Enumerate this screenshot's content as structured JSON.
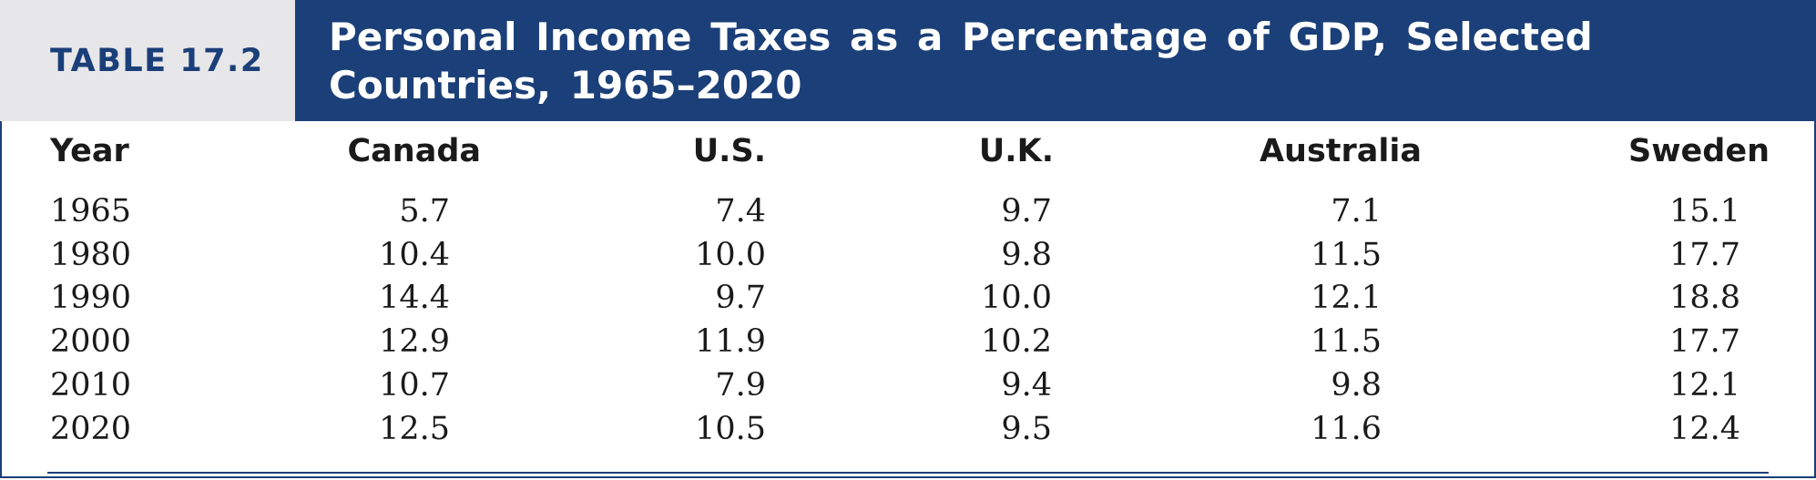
{
  "header": {
    "label": "TABLE 17.2",
    "title": "Personal Income Taxes as a Percentage of GDP, Selected Countries, 1965–2020"
  },
  "table": {
    "columns": [
      "Year",
      "Canada",
      "U.S.",
      "U.K.",
      "Australia",
      "Sweden"
    ],
    "rows": [
      [
        "1965",
        "5.7",
        "7.4",
        "9.7",
        "7.1",
        "15.1"
      ],
      [
        "1980",
        "10.4",
        "10.0",
        "9.8",
        "11.5",
        "17.7"
      ],
      [
        "1990",
        "14.4",
        "9.7",
        "10.0",
        "12.1",
        "18.8"
      ],
      [
        "2000",
        "12.9",
        "11.9",
        "10.2",
        "11.5",
        "17.7"
      ],
      [
        "2010",
        "10.7",
        "7.9",
        "9.4",
        "9.8",
        "12.1"
      ],
      [
        "2020",
        "12.5",
        "10.5",
        "9.5",
        "11.6",
        "12.4"
      ]
    ]
  },
  "colors": {
    "brand_blue": "#1b3f78",
    "label_background": "#e7e6e9",
    "text": "#1a1a1a"
  }
}
